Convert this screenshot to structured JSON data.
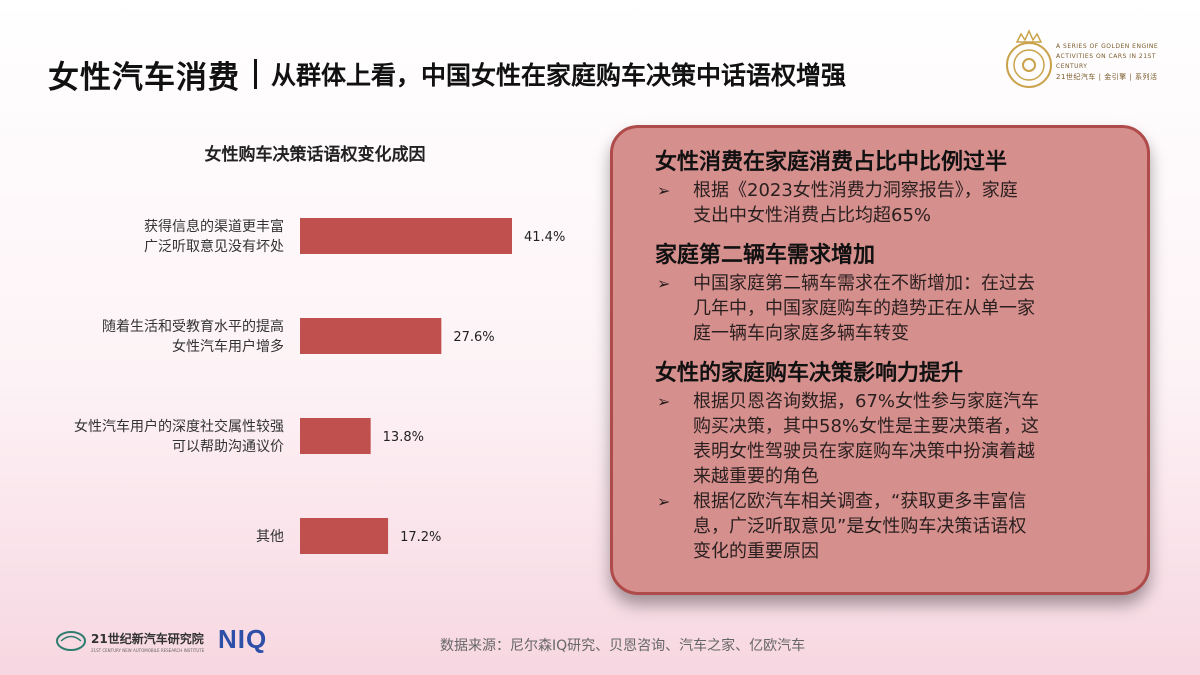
{
  "header": {
    "title_main": "女性汽车消费",
    "title_sub": "从群体上看，中国女性在家庭购车决策中话语权增强"
  },
  "brand": {
    "line1": "A SERIES OF GOLDEN ENGINE",
    "line2": "ACTIVITIES ON CARS IN 21ST CENTURY",
    "line3": "21世纪汽车 | 金引擎 | 系列活",
    "accent_color": "#c9a24a"
  },
  "chart_data": {
    "type": "bar",
    "orientation": "horizontal",
    "title": "女性购车决策话语权变化成因",
    "categories": [
      [
        "获得信息的渠道更丰富",
        "广泛听取意见没有坏处"
      ],
      [
        "随着生活和受教育水平的提高",
        "女性汽车用户增多"
      ],
      [
        "女性汽车用户的深度社交属性较强",
        "可以帮助沟通议价"
      ],
      [
        "其他"
      ]
    ],
    "values": [
      41.4,
      27.6,
      13.8,
      17.2
    ],
    "value_labels": [
      "41.4%",
      "27.6%",
      "13.8%",
      "17.2%"
    ],
    "bar_color": "#c0504d"
  },
  "panel": {
    "sections": [
      {
        "title": "女性消费在家庭消费占比中比例过半",
        "bullets": [
          [
            "根据《2023女性消费力洞察报告》，家庭",
            "支出中女性消费占比均超65%"
          ]
        ]
      },
      {
        "title": "家庭第二辆车需求增加",
        "bullets": [
          [
            "中国家庭第二辆车需求在不断增加：在过去",
            "几年中，中国家庭购车的趋势正在从单一家",
            "庭一辆车向家庭多辆车转变"
          ]
        ]
      },
      {
        "title": "女性的家庭购车决策影响力提升",
        "bullets": [
          [
            "根据贝恩咨询数据，67%女性参与家庭汽车",
            "购买决策，其中58%女性是主要决策者，这",
            "表明女性驾驶员在家庭购车决策中扮演着越",
            "来越重要的角色"
          ],
          [
            "根据亿欧汽车相关调查，“获取更多丰富信",
            "息，广泛听取意见”是女性购车决策话语权",
            "变化的重要原因"
          ]
        ]
      }
    ],
    "bullet_mark": "➢"
  },
  "footer": {
    "institute_name": "21世纪新汽车研究院",
    "institute_en": "21ST CENTURY NEW AUTOMOBILE RESEARCH INSTITUTE",
    "niq": "NIQ",
    "source": "数据来源：尼尔森IQ研究、贝恩咨询、汽车之家、亿欧汽车"
  }
}
